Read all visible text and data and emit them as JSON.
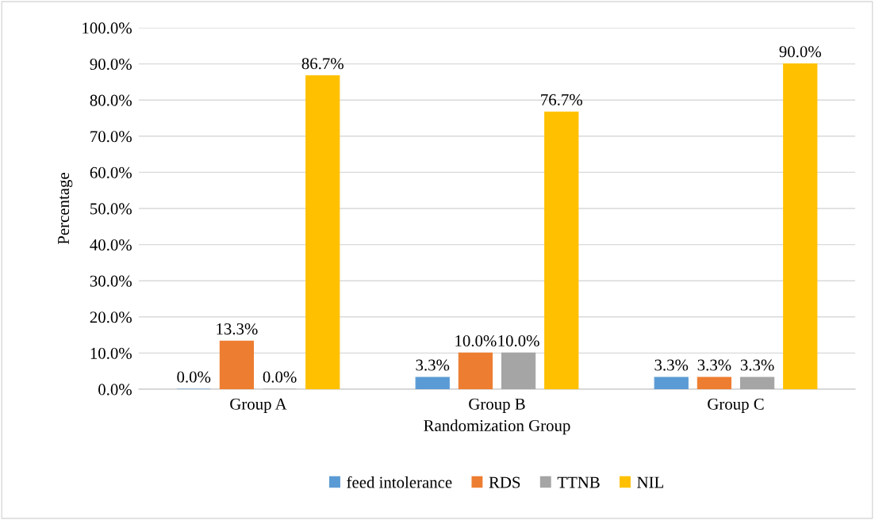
{
  "chart_data": {
    "type": "bar",
    "xlabel": "Randomization Group",
    "ylabel": "Percentage",
    "categories": [
      "Group A",
      "Group B",
      "Group C"
    ],
    "series": [
      {
        "name": "feed intolerance",
        "color": "#5b9bd5",
        "values": [
          0,
          3.3,
          3.3
        ],
        "value_labels": [
          "0.0%",
          "3.3%",
          "3.3%"
        ]
      },
      {
        "name": "RDS",
        "color": "#ed7d31",
        "values": [
          13.3,
          10.0,
          3.3
        ],
        "value_labels": [
          "13.3%",
          "10.0%",
          "3.3%"
        ]
      },
      {
        "name": "TTNB",
        "color": "#a5a5a5",
        "values": [
          0,
          10.0,
          3.3
        ],
        "value_labels": [
          "0.0%",
          "10.0%",
          "3.3%"
        ]
      },
      {
        "name": "NIL",
        "color": "#ffc000",
        "values": [
          86.7,
          76.7,
          90.0
        ],
        "value_labels": [
          "86.7%",
          "76.7%",
          "90.0%"
        ]
      }
    ],
    "ylim": [
      0,
      100
    ],
    "yticks": [
      {
        "value": 0,
        "label": "0.0%"
      },
      {
        "value": 10,
        "label": "10.0%"
      },
      {
        "value": 20,
        "label": "20.0%"
      },
      {
        "value": 30,
        "label": "30.0%"
      },
      {
        "value": 40,
        "label": "40.0%"
      },
      {
        "value": 50,
        "label": "50.0%"
      },
      {
        "value": 60,
        "label": "60.0%"
      },
      {
        "value": 70,
        "label": "70.0%"
      },
      {
        "value": 80,
        "label": "80.0%"
      },
      {
        "value": 90,
        "label": "90.0%"
      },
      {
        "value": 100,
        "label": "100.0%"
      }
    ],
    "grid": "y",
    "legend": "bottom"
  }
}
